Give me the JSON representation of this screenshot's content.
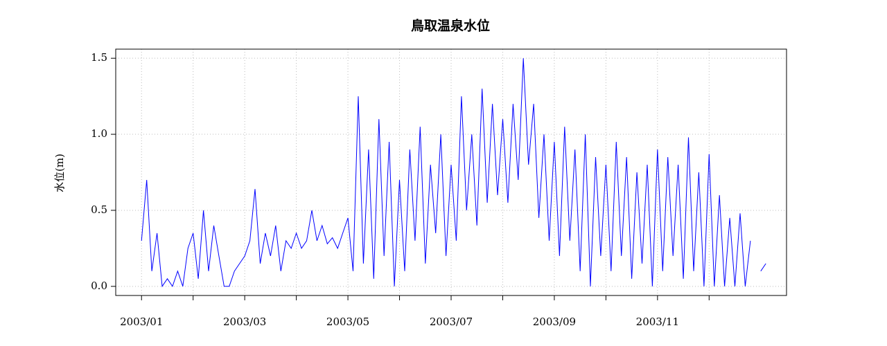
{
  "chart_data": {
    "type": "line",
    "title": "鳥取温泉水位",
    "y_label": "水位(m)",
    "color": "#0000ff",
    "grid": true,
    "ylim": [
      -0.06,
      1.56
    ],
    "yticks": [
      {
        "value": 0,
        "label": "0.0"
      },
      {
        "value": 0.5,
        "label": "0.5"
      },
      {
        "value": 1,
        "label": "1.0"
      },
      {
        "value": 1.5,
        "label": "1.5"
      }
    ],
    "xlim": [
      -5,
      125
    ],
    "xticks": [
      {
        "value": 0,
        "label": "2003/01"
      },
      10,
      {
        "value": 20,
        "label": "2003/03"
      },
      30,
      {
        "value": 40,
        "label": "2003/05"
      },
      50,
      {
        "value": 60,
        "label": "2003/07"
      },
      70,
      {
        "value": 80,
        "label": "2003/09"
      },
      90,
      {
        "value": 100,
        "label": "2003/11"
      },
      110
    ],
    "values": [
      0.3,
      0.7,
      0.1,
      0.35,
      0.0,
      0.05,
      0.0,
      0.1,
      0.0,
      0.25,
      0.35,
      0.05,
      0.5,
      0.1,
      0.4,
      0.2,
      0.0,
      0.0,
      0.1,
      0.15,
      0.2,
      0.3,
      0.64,
      0.15,
      0.35,
      0.2,
      0.4,
      0.1,
      0.3,
      0.25,
      0.35,
      0.25,
      0.3,
      0.5,
      0.3,
      0.4,
      0.28,
      0.32,
      0.25,
      0.35,
      0.45,
      0.1,
      1.25,
      0.15,
      0.9,
      0.05,
      1.1,
      0.2,
      0.95,
      0.0,
      0.7,
      0.1,
      0.9,
      0.3,
      1.05,
      0.15,
      0.8,
      0.35,
      1.0,
      0.2,
      0.8,
      0.3,
      1.25,
      0.5,
      1.0,
      0.4,
      1.3,
      0.55,
      1.2,
      0.6,
      1.1,
      0.55,
      1.2,
      0.7,
      1.5,
      0.8,
      1.2,
      0.45,
      1.0,
      0.3,
      0.95,
      0.2,
      1.05,
      0.3,
      0.9,
      0.1,
      1.0,
      0.0,
      0.85,
      0.2,
      0.8,
      0.1,
      0.95,
      0.2,
      0.85,
      0.05,
      0.75,
      0.15,
      0.8,
      0.0,
      0.9,
      0.1,
      0.85,
      0.2,
      0.8,
      0.05,
      0.98,
      0.1,
      0.75,
      0.0,
      0.87,
      0.0,
      0.6,
      0.0,
      0.45,
      0.0,
      0.48,
      0.0,
      0.3,
      null,
      0.1,
      0.15
    ]
  }
}
